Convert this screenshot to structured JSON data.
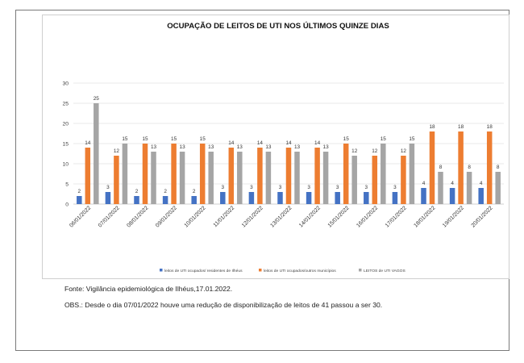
{
  "chart_data": {
    "type": "bar",
    "title": "OCUPAÇÃO DE LEITOS DE UTI NOS ÚLTIMOS  QUINZE DIAS",
    "categories": [
      "06/01/2022",
      "07/01/2022",
      "08/01/2022",
      "09/01/2022",
      "10/01/2022",
      "11/01/2022",
      "12/01/2022",
      "13/01/2022",
      "14/01/2022",
      "15/01/2022",
      "16/01/2022",
      "17/01/2022",
      "18/01/2022",
      "19/01/2022",
      "20/01/2022"
    ],
    "series": [
      {
        "name": "leitos de UTI ocupados/ residentes de Ilhéus",
        "color": "#4472c4",
        "values": [
          2,
          3,
          2,
          2,
          2,
          3,
          3,
          3,
          3,
          3,
          3,
          3,
          4,
          4,
          4
        ]
      },
      {
        "name": "leitos de UTI ocupados/outros municípios",
        "color": "#ed7d31",
        "values": [
          14,
          12,
          15,
          15,
          15,
          14,
          14,
          14,
          14,
          15,
          12,
          12,
          18,
          18,
          18
        ]
      },
      {
        "name": "LEITOS  de UTI VAGOS",
        "color": "#a5a5a5",
        "values": [
          25,
          15,
          13,
          13,
          13,
          13,
          13,
          13,
          13,
          12,
          15,
          15,
          8,
          8,
          8
        ]
      }
    ],
    "yticks": [
      0,
      5,
      10,
      15,
      20,
      25,
      30
    ],
    "ylim": [
      0,
      30
    ],
    "grid": true,
    "legend_position": "bottom"
  },
  "footer": {
    "source": "Fonte: Vigilância epidemiológica de Ilhéus,17.01.2022.",
    "obs": "OBS.: Desde o dia 07/01/2022 houve uma redução de disponibilização de leitos de 41 passou a ser 30."
  }
}
